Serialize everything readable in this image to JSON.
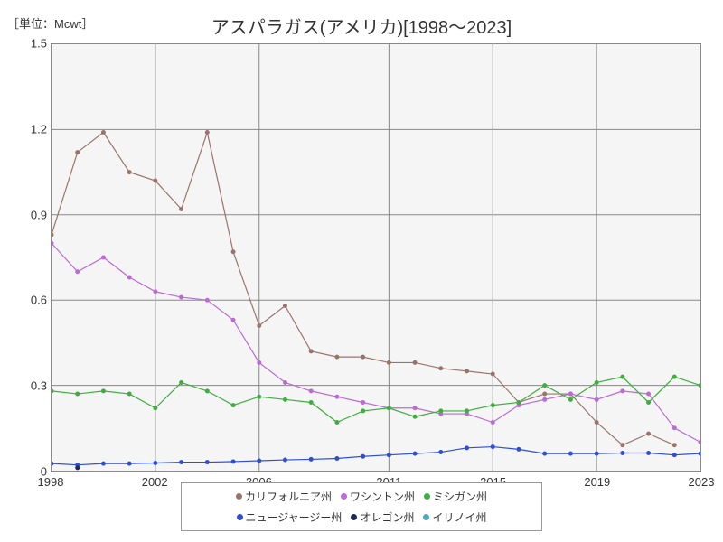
{
  "unit_label": "［単位：Mcwt］",
  "title": "アスパラガス(アメリカ)[1998～2023]",
  "chart": {
    "type": "line",
    "background_color": "#f5f5f5",
    "grid_color": "#888888",
    "xlim": [
      1998,
      2023
    ],
    "ylim": [
      0,
      1.5
    ],
    "x_ticks": [
      1998,
      2002,
      2006,
      2011,
      2015,
      2019,
      2023
    ],
    "y_ticks": [
      0,
      0.3,
      0.6,
      0.9,
      1.2,
      1.5
    ],
    "y_tick_labels": [
      "0",
      "0.3",
      "0.6",
      "0.9",
      "1.2",
      "1.5"
    ],
    "x_tick_labels": [
      "1998",
      "2002",
      "2006",
      "2011",
      "2015",
      "2019",
      "2023"
    ],
    "marker_radius": 2.5,
    "series": [
      {
        "name": "カリフォルニア州",
        "color": "#9a746c",
        "x": [
          1998,
          1999,
          2000,
          2001,
          2002,
          2003,
          2004,
          2005,
          2006,
          2007,
          2008,
          2009,
          2010,
          2011,
          2012,
          2013,
          2014,
          2015,
          2016,
          2017,
          2018,
          2019,
          2020,
          2021,
          2022
        ],
        "y": [
          0.83,
          1.12,
          1.19,
          1.05,
          1.02,
          0.92,
          1.19,
          0.77,
          0.51,
          0.58,
          0.42,
          0.4,
          0.4,
          0.38,
          0.38,
          0.36,
          0.35,
          0.34,
          0.24,
          0.27,
          0.27,
          0.17,
          0.09,
          0.13,
          0.09
        ]
      },
      {
        "name": "ワシントン州",
        "color": "#bb6ad6",
        "x": [
          1998,
          1999,
          2000,
          2001,
          2002,
          2003,
          2004,
          2005,
          2006,
          2007,
          2008,
          2009,
          2010,
          2011,
          2012,
          2013,
          2014,
          2015,
          2016,
          2017,
          2018,
          2019,
          2020,
          2021,
          2022,
          2023
        ],
        "y": [
          0.8,
          0.7,
          0.75,
          0.68,
          0.63,
          0.61,
          0.6,
          0.53,
          0.38,
          0.31,
          0.28,
          0.26,
          0.24,
          0.22,
          0.22,
          0.2,
          0.2,
          0.17,
          0.23,
          0.25,
          0.27,
          0.25,
          0.28,
          0.27,
          0.15,
          0.1
        ]
      },
      {
        "name": "ミシガン州",
        "color": "#3eae3e",
        "x": [
          1998,
          1999,
          2000,
          2001,
          2002,
          2003,
          2004,
          2005,
          2006,
          2007,
          2008,
          2009,
          2010,
          2011,
          2012,
          2013,
          2014,
          2015,
          2016,
          2017,
          2018,
          2019,
          2020,
          2021,
          2022,
          2023
        ],
        "y": [
          0.28,
          0.27,
          0.28,
          0.27,
          0.22,
          0.31,
          0.28,
          0.23,
          0.26,
          0.25,
          0.24,
          0.17,
          0.21,
          0.22,
          0.19,
          0.21,
          0.21,
          0.23,
          0.24,
          0.3,
          0.25,
          0.31,
          0.33,
          0.24,
          0.33,
          0.3
        ]
      },
      {
        "name": "ニュージャージー州",
        "color": "#2e4fd1",
        "x": [
          1998,
          1999,
          2000,
          2001,
          2002,
          2003,
          2004,
          2005,
          2006,
          2007,
          2008,
          2009,
          2010,
          2011,
          2012,
          2013,
          2014,
          2015,
          2016,
          2017,
          2018,
          2019,
          2020,
          2021,
          2022,
          2023
        ],
        "y": [
          0.025,
          0.02,
          0.025,
          0.025,
          0.027,
          0.03,
          0.03,
          0.032,
          0.035,
          0.038,
          0.04,
          0.043,
          0.05,
          0.055,
          0.06,
          0.065,
          0.08,
          0.084,
          0.075,
          0.06,
          0.06,
          0.06,
          0.062,
          0.062,
          0.055,
          0.06
        ]
      },
      {
        "name": "オレゴン州",
        "color": "#1a2a5c",
        "x": [
          1999
        ],
        "y": [
          0.01
        ]
      },
      {
        "name": "イリノイ州",
        "color": "#4fa8c2",
        "x": [],
        "y": []
      }
    ]
  }
}
